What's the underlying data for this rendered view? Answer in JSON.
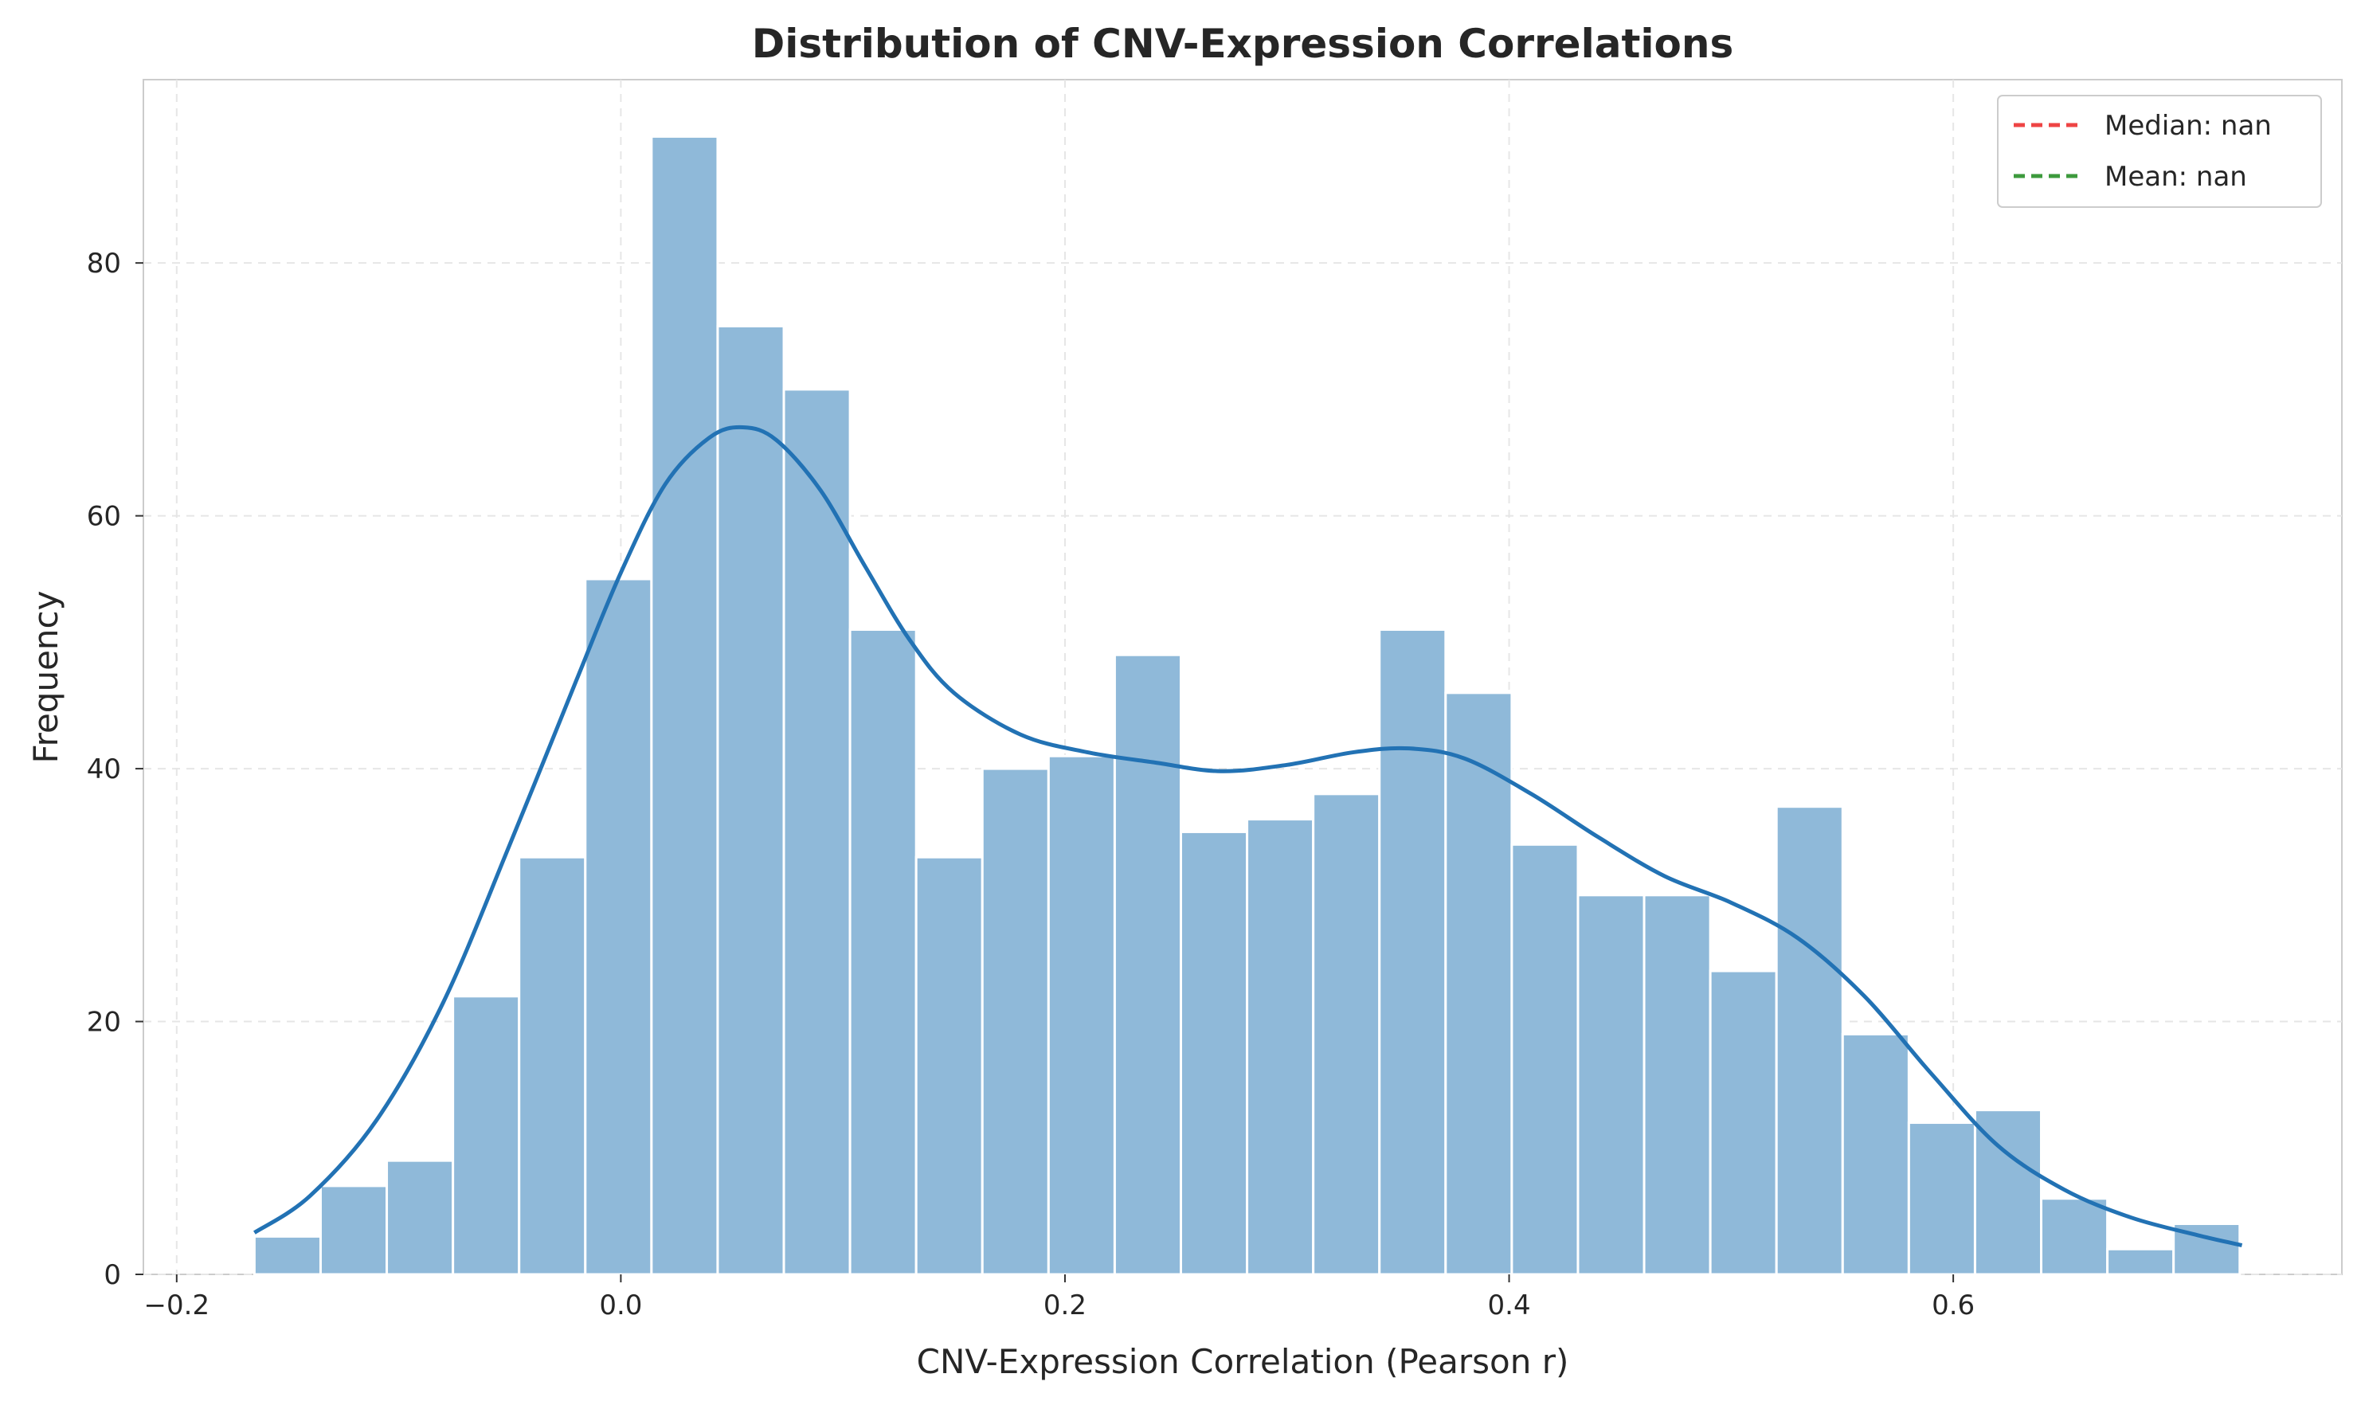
{
  "chart_data": {
    "type": "bar",
    "title": "Distribution of CNV-Expression Correlations",
    "xlabel": "CNV-Expression Correlation (Pearson r)",
    "ylabel": "Frequency",
    "xlim": [
      -0.215,
      0.775
    ],
    "ylim": [
      0,
      94.5
    ],
    "xticks": [
      -0.2,
      0.0,
      0.2,
      0.4,
      0.6
    ],
    "xtick_labels": [
      "−0.2",
      "0.0",
      "0.2",
      "0.4",
      "0.6"
    ],
    "yticks": [
      0,
      20,
      40,
      60,
      80
    ],
    "ytick_labels": [
      "0",
      "20",
      "40",
      "60",
      "80"
    ],
    "grid": true,
    "bin_start": -0.165,
    "bin_width": 0.0298,
    "series": [
      {
        "kind": "histogram",
        "color": "#8fb9d9",
        "values": [
          3,
          7,
          9,
          22,
          33,
          55,
          90,
          75,
          70,
          51,
          33,
          40,
          41,
          49,
          35,
          36,
          38,
          51,
          46,
          34,
          30,
          30,
          24,
          37,
          19,
          12,
          13,
          6,
          2,
          4
        ]
      },
      {
        "kind": "kde",
        "color": "#2272b4",
        "x": [
          -0.165,
          -0.14,
          -0.11,
          -0.08,
          -0.05,
          -0.02,
          0.0,
          0.02,
          0.04,
          0.055,
          0.07,
          0.09,
          0.11,
          0.13,
          0.15,
          0.18,
          0.21,
          0.24,
          0.27,
          0.3,
          0.33,
          0.355,
          0.38,
          0.41,
          0.44,
          0.47,
          0.5,
          0.53,
          0.56,
          0.59,
          0.62,
          0.65,
          0.68,
          0.71,
          0.73
        ],
        "y": [
          3.3,
          6.2,
          12.2,
          21.5,
          34.0,
          47.0,
          55.5,
          62.5,
          66.2,
          67.0,
          66.0,
          62.0,
          56.0,
          50.2,
          46.0,
          42.7,
          41.3,
          40.5,
          39.8,
          40.3,
          41.3,
          41.6,
          40.8,
          38.0,
          34.6,
          31.5,
          29.4,
          26.6,
          22.0,
          15.9,
          10.2,
          6.7,
          4.5,
          3.1,
          2.3
        ]
      }
    ],
    "legend": {
      "position": "top-right",
      "entries": [
        {
          "label": "Median: nan",
          "color": "#ee4444",
          "style": "dashed"
        },
        {
          "label": "Mean: nan",
          "color": "#3d9a3d",
          "style": "dashed"
        }
      ]
    }
  }
}
